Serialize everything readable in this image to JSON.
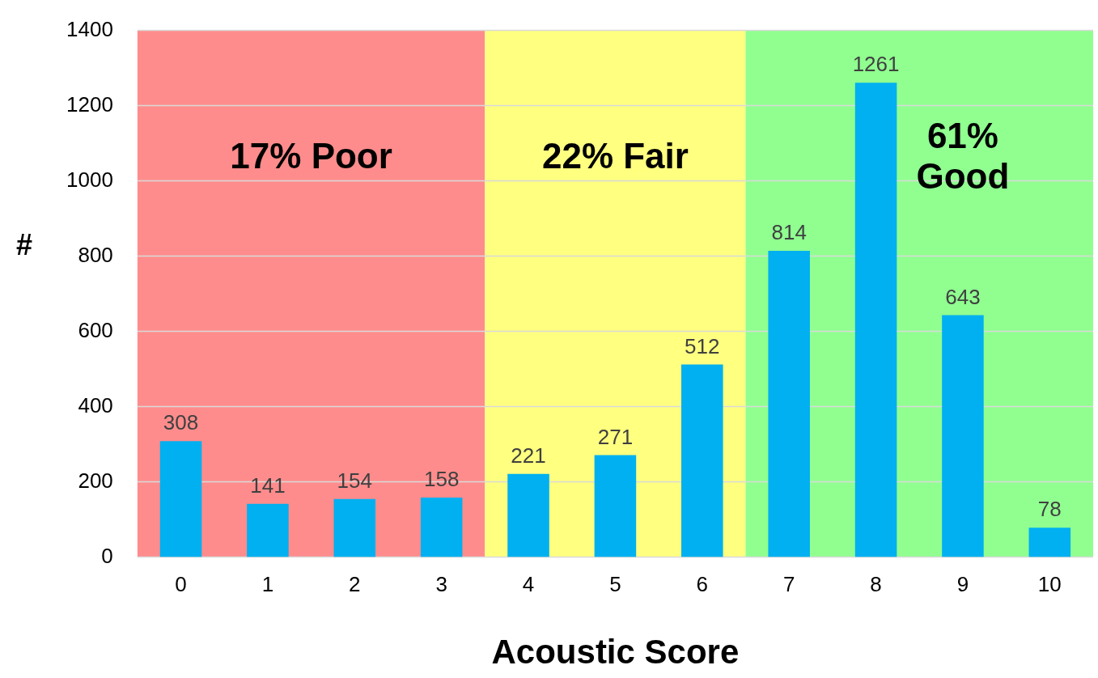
{
  "chart_data": {
    "type": "bar",
    "xlabel": "Acoustic Score",
    "ylabel": "#",
    "categories": [
      "0",
      "1",
      "2",
      "3",
      "4",
      "5",
      "6",
      "7",
      "8",
      "9",
      "10"
    ],
    "values": [
      308,
      141,
      154,
      158,
      221,
      271,
      512,
      814,
      1261,
      643,
      78
    ],
    "color": "#00b0f0",
    "ylim": [
      0,
      1400
    ],
    "yticks": [
      0,
      200,
      400,
      600,
      800,
      1000,
      1200,
      1400
    ],
    "grid": "y",
    "data_labels": true,
    "legend": false,
    "bands": [
      {
        "axis": "x",
        "from": "0",
        "to": "3",
        "label": "17% Poor",
        "color": "#ff8c8c"
      },
      {
        "axis": "x",
        "from": "4",
        "to": "6",
        "label": "22% Fair",
        "color": "#ffff80"
      },
      {
        "axis": "x",
        "from": "7",
        "to": "10",
        "label": "61% Good",
        "color": "#90ff90"
      }
    ]
  }
}
